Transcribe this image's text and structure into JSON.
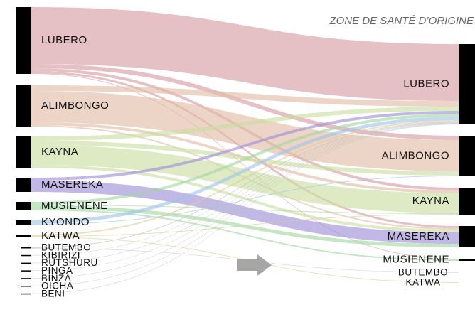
{
  "chart_data": {
    "type": "sankey",
    "title": "ZONE DE SANTÉ D’ORIGINE",
    "sources": [
      "LUBERO",
      "ALIMBONGO",
      "KAYNA",
      "MASEREKA",
      "MUSIENENE",
      "KYONDO",
      "KATWA",
      "BUTEMBO",
      "KIBIRIZI",
      "RUTSHURU",
      "PINGA",
      "BINZA",
      "OICHA",
      "BENI"
    ],
    "source_colors": [
      "#d59a9f",
      "#e0bca3",
      "#c9dd9f",
      "#9d8cd6",
      "#9fd6a0",
      "#9fc4e6",
      "#ddcb97",
      "#bbbbbb",
      "#bbbbbb",
      "#bbbbbb",
      "#bbbbbb",
      "#bbbbbb",
      "#bbbbbb",
      "#bbbbbb"
    ],
    "targets": [
      "LUBERO",
      "ALIMBONGO",
      "KAYNA",
      "MASEREKA",
      "MUSIENENE",
      "BUTEMBO",
      "KATWA"
    ],
    "links": [
      {
        "source": 0,
        "target": 0,
        "value": 80
      },
      {
        "source": 0,
        "target": 1,
        "value": 6
      },
      {
        "source": 0,
        "target": 2,
        "value": 4
      },
      {
        "source": 0,
        "target": 3,
        "value": 3
      },
      {
        "source": 0,
        "target": 4,
        "value": 1
      },
      {
        "source": 1,
        "target": 0,
        "value": 8
      },
      {
        "source": 1,
        "target": 1,
        "value": 44
      },
      {
        "source": 1,
        "target": 2,
        "value": 4
      },
      {
        "source": 1,
        "target": 3,
        "value": 2
      },
      {
        "source": 2,
        "target": 0,
        "value": 6
      },
      {
        "source": 2,
        "target": 1,
        "value": 6
      },
      {
        "source": 2,
        "target": 2,
        "value": 28
      },
      {
        "source": 2,
        "target": 3,
        "value": 4
      },
      {
        "source": 3,
        "target": 0,
        "value": 4
      },
      {
        "source": 3,
        "target": 3,
        "value": 16
      },
      {
        "source": 4,
        "target": 0,
        "value": 4
      },
      {
        "source": 4,
        "target": 2,
        "value": 1
      },
      {
        "source": 4,
        "target": 3,
        "value": 5
      },
      {
        "source": 4,
        "target": 4,
        "value": 2
      },
      {
        "source": 5,
        "target": 0,
        "value": 5
      },
      {
        "source": 5,
        "target": 1,
        "value": 1
      },
      {
        "source": 6,
        "target": 0,
        "value": 2
      },
      {
        "source": 6,
        "target": 2,
        "value": 1
      },
      {
        "source": 6,
        "target": 6,
        "value": 1
      },
      {
        "source": 7,
        "target": 0,
        "value": 1
      },
      {
        "source": 7,
        "target": 5,
        "value": 0.5
      },
      {
        "source": 8,
        "target": 0,
        "value": 0.5
      },
      {
        "source": 9,
        "target": 0,
        "value": 0.5
      },
      {
        "source": 10,
        "target": 0,
        "value": 0.5
      },
      {
        "source": 11,
        "target": 0,
        "value": 0.5
      },
      {
        "source": 12,
        "target": 0,
        "value": 0.5
      },
      {
        "source": 13,
        "target": 0,
        "value": 0.5
      }
    ]
  }
}
